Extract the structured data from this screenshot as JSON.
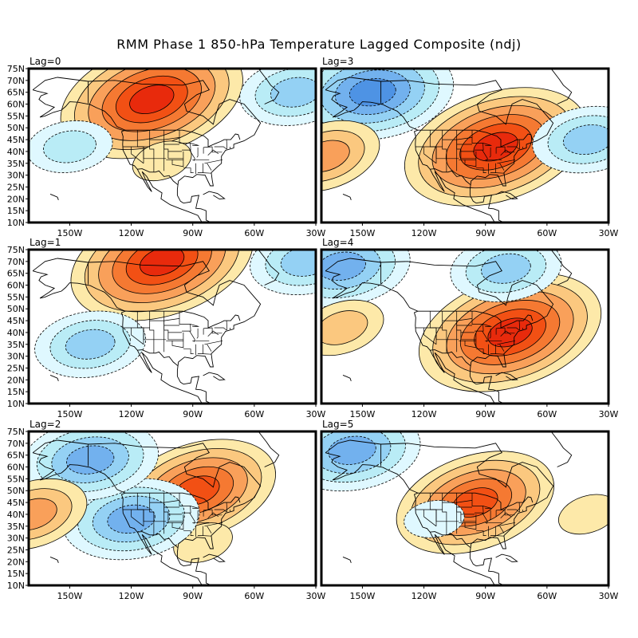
{
  "title": "RMM Phase 1 850-hPa Temperature Lagged Composite (ndj)",
  "chart_data": {
    "type": "contour-map-panels",
    "title": "RMM Phase 1 850-hPa Temperature Lagged Composite (ndj)",
    "variable": "850-hPa temperature anomaly",
    "season": "ndj",
    "region": "North America / North Pacific / North Atlantic",
    "lon_range": [
      -170,
      -30
    ],
    "lat_range": [
      10,
      75
    ],
    "x_ticks": [
      "150W",
      "120W",
      "90W",
      "60W",
      "30W"
    ],
    "x_tick_values": [
      -150,
      -120,
      -90,
      -60,
      -30
    ],
    "y_ticks": [
      "75N",
      "70N",
      "65N",
      "60N",
      "55N",
      "50N",
      "45N",
      "40N",
      "35N",
      "30N",
      "25N",
      "20N",
      "15N",
      "10N"
    ],
    "y_tick_values": [
      75,
      70,
      65,
      60,
      55,
      50,
      45,
      40,
      35,
      30,
      25,
      20,
      15,
      10
    ],
    "contour_style": {
      "positive": "solid",
      "negative": "dashed"
    },
    "palette": {
      "warm": [
        "#fde9a9",
        "#fbc87f",
        "#f9a05a",
        "#f57932",
        "#f25014",
        "#e82a0c"
      ],
      "cool": [
        "#dff8ff",
        "#b9ecf6",
        "#94d1f4",
        "#72b1ee",
        "#4e93e4"
      ]
    },
    "panels": [
      {
        "label": "Lag=0",
        "position": "top-left",
        "features": [
          {
            "sign": "warm",
            "center_lon": -110,
            "center_lat": 62,
            "peak_level": 6,
            "note": "Western Canada warm maximum extending to Alaska/Yukon"
          },
          {
            "sign": "warm",
            "center_lon": -105,
            "center_lat": 36,
            "peak_level": 1,
            "note": "Southwest US weak warm"
          },
          {
            "sign": "cool",
            "center_lon": -150,
            "center_lat": 42,
            "peak_level": 2,
            "note": "North Pacific weak cool"
          },
          {
            "sign": "cool",
            "center_lon": -40,
            "center_lat": 65,
            "peak_level": 3,
            "note": "Greenland cool"
          }
        ]
      },
      {
        "label": "Lag=1",
        "position": "middle-left",
        "features": [
          {
            "sign": "warm",
            "center_lon": -105,
            "center_lat": 70,
            "peak_level": 6,
            "note": "Northern Canada warm maximum"
          },
          {
            "sign": "cool",
            "center_lon": -140,
            "center_lat": 35,
            "peak_level": 3,
            "note": "Eastern Pacific cool"
          },
          {
            "sign": "cool",
            "center_lon": -35,
            "center_lat": 70,
            "peak_level": 3,
            "note": "Greenland cool"
          }
        ]
      },
      {
        "label": "Lag=2",
        "position": "bottom-left",
        "features": [
          {
            "sign": "warm",
            "center_lon": -88,
            "center_lat": 50,
            "peak_level": 5,
            "note": "Great Lakes / Ontario warm"
          },
          {
            "sign": "warm",
            "center_lon": -85,
            "center_lat": 28,
            "peak_level": 1,
            "note": "Southeast US weak warm"
          },
          {
            "sign": "cool",
            "center_lon": -120,
            "center_lat": 38,
            "peak_level": 4,
            "note": "Western US cool"
          },
          {
            "sign": "cool",
            "center_lon": -140,
            "center_lat": 63,
            "peak_level": 4,
            "note": "Alaska cool"
          },
          {
            "sign": "warm",
            "center_lon": -168,
            "center_lat": 40,
            "peak_level": 3,
            "note": "Western Pacific edge warm"
          }
        ]
      },
      {
        "label": "Lag=3",
        "position": "top-right",
        "features": [
          {
            "sign": "warm",
            "center_lon": -85,
            "center_lat": 42,
            "peak_level": 6,
            "note": "Central/Eastern US warm maximum"
          },
          {
            "sign": "cool",
            "center_lon": -145,
            "center_lat": 65,
            "peak_level": 5,
            "note": "Alaska strong cool"
          },
          {
            "sign": "cool",
            "center_lon": -40,
            "center_lat": 45,
            "peak_level": 3,
            "note": "North Atlantic cool"
          },
          {
            "sign": "warm",
            "center_lon": -168,
            "center_lat": 38,
            "peak_level": 3,
            "note": "Western Pacific edge warm"
          }
        ]
      },
      {
        "label": "Lag=4",
        "position": "middle-right",
        "features": [
          {
            "sign": "warm",
            "center_lon": -78,
            "center_lat": 40,
            "peak_level": 6,
            "note": "Eastern US warm maximum"
          },
          {
            "sign": "cool",
            "center_lon": -160,
            "center_lat": 68,
            "peak_level": 4,
            "note": "Alaska/Bering cool"
          },
          {
            "sign": "cool",
            "center_lon": -80,
            "center_lat": 67,
            "peak_level": 3,
            "note": "Hudson Bay cool"
          },
          {
            "sign": "warm",
            "center_lon": -160,
            "center_lat": 42,
            "peak_level": 2,
            "note": "North Pacific weak warm"
          }
        ]
      },
      {
        "label": "Lag=5",
        "position": "bottom-right",
        "features": [
          {
            "sign": "warm",
            "center_lon": -95,
            "center_lat": 45,
            "peak_level": 5,
            "note": "Broad NW-SE warm band across US/Canada"
          },
          {
            "sign": "cool",
            "center_lon": -155,
            "center_lat": 67,
            "peak_level": 4,
            "note": "Alaska cool"
          },
          {
            "sign": "cool",
            "center_lon": -115,
            "center_lat": 38,
            "peak_level": 1,
            "note": "Intermountain West weak cool"
          },
          {
            "sign": "warm",
            "center_lon": -40,
            "center_lat": 40,
            "peak_level": 1,
            "note": "Atlantic weak warm"
          }
        ]
      }
    ]
  }
}
